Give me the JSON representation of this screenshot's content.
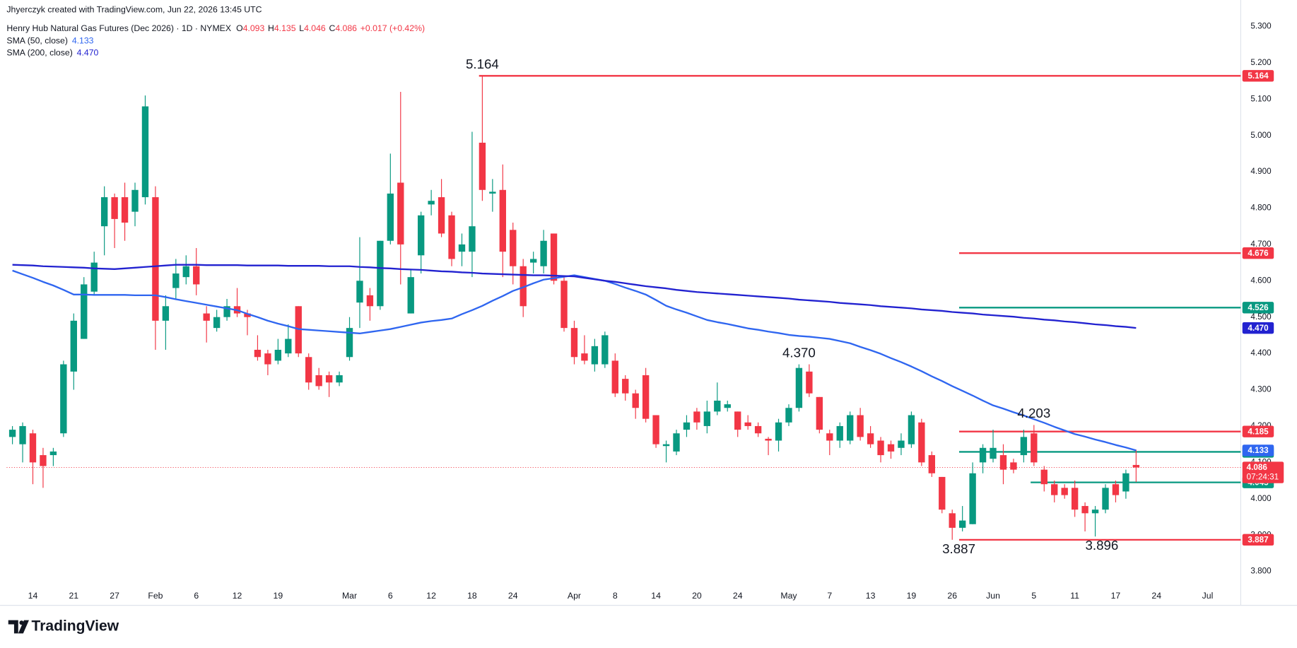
{
  "chart_data": {
    "type": "candlestick",
    "credit": "Jhyerczyk created with TradingView.com, Jun 22, 2026 13:45 UTC",
    "title": "Henry Hub Natural Gas Futures (Dec 2026) · 1D · NYMEX",
    "ohlc_legend": [
      {
        "key": "O",
        "value": 4.093
      },
      {
        "key": "H",
        "value": 4.135
      },
      {
        "key": "L",
        "value": 4.046
      },
      {
        "key": "C",
        "value": 4.086
      }
    ],
    "change": "+0.017 (+0.42%)",
    "brand": "TradingView",
    "up_color": "#089981",
    "down_color": "#f23645",
    "categories": [
      null,
      null,
      "14",
      null,
      null,
      null,
      "21",
      null,
      null,
      null,
      "27",
      null,
      null,
      null,
      "Feb",
      null,
      null,
      null,
      "6",
      null,
      null,
      null,
      "12",
      null,
      null,
      null,
      "19",
      null,
      null,
      null,
      null,
      null,
      null,
      "Mar",
      null,
      null,
      null,
      "6",
      null,
      null,
      null,
      "12",
      null,
      null,
      null,
      "18",
      null,
      null,
      null,
      "24",
      null,
      null,
      null,
      null,
      null,
      "Apr",
      null,
      null,
      null,
      "8",
      null,
      null,
      null,
      "14",
      null,
      null,
      null,
      "20",
      null,
      null,
      null,
      "24",
      null,
      null,
      null,
      null,
      "May",
      null,
      null,
      null,
      "7",
      null,
      null,
      null,
      "13",
      null,
      null,
      null,
      "19",
      null,
      null,
      null,
      "26",
      null,
      null,
      null,
      "Jun",
      null,
      null,
      null,
      "5",
      null,
      null,
      null,
      "11",
      null,
      null,
      null,
      "17",
      null,
      null,
      null,
      "24",
      null,
      null,
      null,
      null,
      "Jul",
      null,
      null
    ],
    "open": [
      4.17,
      4.15,
      4.18,
      4.12,
      4.12,
      4.18,
      4.35,
      4.44,
      4.57,
      4.75,
      4.83,
      4.83,
      4.79,
      4.83,
      4.83,
      4.49,
      4.58,
      4.61,
      4.64,
      4.51,
      4.47,
      4.5,
      4.53,
      4.51,
      4.41,
      4.4,
      4.38,
      4.4,
      4.53,
      4.39,
      4.34,
      4.34,
      4.32,
      4.39,
      4.54,
      4.56,
      4.53,
      4.71,
      4.87,
      4.51,
      4.67,
      4.81,
      4.83,
      4.78,
      4.68,
      4.68,
      4.98,
      4.84,
      4.85,
      4.74,
      4.64,
      4.65,
      4.64,
      4.73,
      4.6,
      4.47,
      4.4,
      4.37,
      4.37,
      4.38,
      4.33,
      4.29,
      4.34,
      4.23,
      4.145,
      4.13,
      4.19,
      4.24,
      4.2,
      4.24,
      4.25,
      4.24,
      4.21,
      4.2,
      4.165,
      4.16,
      4.21,
      4.25,
      4.35,
      4.28,
      4.18,
      4.16,
      4.16,
      4.23,
      4.18,
      4.16,
      4.15,
      4.14,
      4.15,
      4.21,
      4.12,
      4.06,
      3.96,
      3.92,
      3.93,
      4.1,
      4.11,
      4.12,
      4.1,
      4.12,
      4.18,
      4.08,
      4.04,
      4.03,
      4.03,
      3.98,
      3.96,
      3.97,
      4.04,
      4.02,
      4.093,
      null,
      null,
      null,
      null,
      null,
      null,
      null,
      null,
      null
    ],
    "high": [
      4.2,
      4.21,
      4.19,
      4.14,
      4.14,
      4.38,
      4.51,
      4.61,
      4.68,
      4.86,
      4.84,
      4.87,
      4.87,
      5.11,
      4.86,
      4.56,
      4.66,
      4.67,
      4.69,
      4.53,
      4.52,
      4.55,
      4.58,
      4.52,
      4.45,
      4.41,
      4.44,
      4.48,
      4.53,
      4.4,
      4.36,
      4.35,
      4.35,
      4.5,
      4.72,
      4.58,
      4.71,
      4.95,
      5.12,
      4.63,
      4.79,
      4.85,
      4.88,
      4.79,
      4.73,
      5.01,
      5.164,
      4.88,
      4.92,
      4.76,
      4.66,
      4.68,
      4.74,
      4.73,
      4.61,
      4.49,
      4.45,
      4.44,
      4.46,
      4.4,
      4.34,
      4.3,
      4.36,
      4.23,
      4.16,
      4.19,
      4.23,
      4.25,
      4.27,
      4.32,
      4.27,
      4.24,
      4.23,
      4.21,
      4.17,
      4.22,
      4.26,
      4.37,
      4.37,
      4.28,
      4.19,
      4.21,
      4.24,
      4.25,
      4.2,
      4.17,
      4.16,
      4.18,
      4.24,
      4.22,
      4.13,
      4.06,
      3.97,
      3.98,
      4.1,
      4.15,
      4.19,
      4.15,
      4.11,
      4.19,
      4.203,
      4.09,
      4.05,
      4.04,
      4.05,
      3.99,
      3.98,
      4.04,
      4.05,
      4.08,
      4.135,
      null,
      null,
      null,
      null,
      null,
      null,
      null,
      null,
      null
    ],
    "low": [
      4.15,
      4.1,
      4.04,
      4.03,
      4.09,
      4.17,
      4.3,
      4.44,
      4.56,
      4.67,
      4.69,
      4.71,
      4.75,
      4.81,
      4.41,
      4.41,
      4.55,
      4.59,
      4.56,
      4.43,
      4.46,
      4.49,
      4.5,
      4.45,
      4.38,
      4.34,
      4.37,
      4.39,
      4.39,
      4.3,
      4.3,
      4.28,
      4.31,
      4.38,
      4.47,
      4.49,
      4.52,
      4.7,
      4.59,
      4.51,
      4.62,
      4.78,
      4.72,
      4.64,
      4.64,
      4.61,
      4.82,
      4.79,
      4.61,
      4.59,
      4.5,
      4.62,
      4.62,
      4.59,
      4.46,
      4.37,
      4.37,
      4.35,
      4.36,
      4.28,
      4.27,
      4.22,
      4.21,
      4.14,
      4.1,
      4.12,
      4.17,
      4.19,
      4.18,
      4.23,
      4.24,
      4.17,
      4.19,
      4.17,
      4.12,
      4.13,
      4.2,
      4.24,
      4.28,
      4.18,
      4.12,
      4.14,
      4.15,
      4.16,
      4.14,
      4.1,
      4.11,
      4.12,
      4.14,
      4.09,
      4.06,
      3.96,
      3.887,
      3.91,
      3.93,
      4.07,
      4.1,
      4.04,
      4.07,
      4.1,
      4.09,
      4.02,
      3.99,
      4.0,
      3.95,
      3.91,
      3.896,
      3.96,
      3.99,
      4.0,
      4.046,
      null,
      null,
      null,
      null,
      null,
      null,
      null,
      null,
      null
    ],
    "close": [
      4.19,
      4.2,
      4.1,
      4.09,
      4.13,
      4.37,
      4.49,
      4.59,
      4.65,
      4.83,
      4.77,
      4.76,
      4.85,
      5.08,
      4.49,
      4.53,
      4.62,
      4.64,
      4.59,
      4.49,
      4.5,
      4.53,
      4.51,
      4.5,
      4.39,
      4.37,
      4.41,
      4.44,
      4.4,
      4.32,
      4.31,
      4.32,
      4.34,
      4.47,
      4.6,
      4.53,
      4.71,
      4.84,
      4.7,
      4.61,
      4.78,
      4.82,
      4.73,
      4.66,
      4.7,
      4.75,
      4.85,
      4.845,
      4.68,
      4.64,
      4.53,
      4.66,
      4.71,
      4.6,
      4.47,
      4.39,
      4.38,
      4.42,
      4.45,
      4.29,
      4.29,
      4.25,
      4.22,
      4.15,
      4.15,
      4.18,
      4.21,
      4.21,
      4.24,
      4.27,
      4.26,
      4.19,
      4.2,
      4.18,
      4.16,
      4.21,
      4.25,
      4.36,
      4.29,
      4.19,
      4.16,
      4.2,
      4.23,
      4.17,
      4.15,
      4.12,
      4.13,
      4.16,
      4.23,
      4.1,
      4.07,
      3.97,
      3.92,
      3.94,
      4.07,
      4.14,
      4.14,
      4.08,
      4.08,
      4.17,
      4.1,
      4.04,
      4.01,
      4.01,
      3.97,
      3.96,
      3.97,
      4.03,
      4.01,
      4.07,
      4.086,
      null,
      null,
      null,
      null,
      null,
      null,
      null,
      null,
      null
    ],
    "series": [
      {
        "name": "SMA (50, close)",
        "color": "#2f66f0",
        "last": 4.133,
        "values": [
          4.628,
          4.618,
          4.608,
          4.597,
          4.587,
          4.575,
          4.562,
          4.562,
          4.561,
          4.561,
          4.561,
          4.561,
          4.56,
          4.56,
          4.56,
          4.555,
          4.549,
          4.544,
          4.539,
          4.534,
          4.529,
          4.524,
          4.519,
          4.509,
          4.5,
          4.49,
          4.482,
          4.475,
          4.467,
          4.465,
          4.463,
          4.461,
          4.459,
          4.457,
          4.455,
          4.459,
          4.463,
          4.467,
          4.473,
          4.479,
          4.485,
          4.489,
          4.492,
          4.496,
          4.508,
          4.519,
          4.531,
          4.545,
          4.558,
          4.572,
          4.582,
          4.593,
          4.603,
          4.607,
          4.611,
          4.615,
          4.61,
          4.605,
          4.6,
          4.591,
          4.581,
          4.572,
          4.562,
          4.547,
          4.531,
          4.521,
          4.512,
          4.502,
          4.492,
          4.486,
          4.481,
          4.475,
          4.469,
          4.465,
          4.46,
          4.456,
          4.451,
          4.448,
          4.446,
          4.443,
          4.44,
          4.434,
          4.428,
          4.418,
          4.409,
          4.399,
          4.387,
          4.376,
          4.364,
          4.351,
          4.337,
          4.324,
          4.31,
          4.297,
          4.284,
          4.27,
          4.257,
          4.248,
          4.238,
          4.229,
          4.219,
          4.209,
          4.198,
          4.188,
          4.178,
          4.171,
          4.163,
          4.156,
          4.148,
          4.141,
          4.133,
          null,
          null,
          null,
          null,
          null,
          null,
          null,
          null,
          null
        ]
      },
      {
        "name": "SMA (200, close)",
        "color": "#2222d0",
        "last": {
          "value": 4.47,
          "label": "4.470"
        },
        "values": [
          4.644,
          4.643,
          4.642,
          4.64,
          4.639,
          4.638,
          4.637,
          4.636,
          4.634,
          4.633,
          4.632,
          4.634,
          4.636,
          4.638,
          4.64,
          4.642,
          4.644,
          4.644,
          4.644,
          4.643,
          4.643,
          4.643,
          4.643,
          4.642,
          4.642,
          4.642,
          4.642,
          4.641,
          4.641,
          4.641,
          4.641,
          4.64,
          4.64,
          4.64,
          4.638,
          4.637,
          4.635,
          4.634,
          4.632,
          4.631,
          4.63,
          4.628,
          4.626,
          4.625,
          4.623,
          4.622,
          4.62,
          4.619,
          4.618,
          4.617,
          4.616,
          4.615,
          4.615,
          4.614,
          4.613,
          4.612,
          4.608,
          4.604,
          4.6,
          4.597,
          4.593,
          4.589,
          4.585,
          4.582,
          4.579,
          4.575,
          4.572,
          4.569,
          4.567,
          4.565,
          4.563,
          4.561,
          4.559,
          4.557,
          4.555,
          4.553,
          4.551,
          4.548,
          4.546,
          4.544,
          4.542,
          4.539,
          4.537,
          4.535,
          4.533,
          4.53,
          4.528,
          4.526,
          4.524,
          4.521,
          4.519,
          4.517,
          4.514,
          4.512,
          4.51,
          4.507,
          4.505,
          4.503,
          4.501,
          4.498,
          4.496,
          4.493,
          4.491,
          4.488,
          4.486,
          4.483,
          4.48,
          4.478,
          4.475,
          4.473,
          4.47,
          null,
          null,
          null,
          null,
          null,
          null,
          null,
          null,
          null
        ]
      }
    ],
    "levels": [
      {
        "value": 5.164,
        "color": "#f23645"
      },
      {
        "value": 4.676,
        "color": "#f23645"
      },
      {
        "value": 4.526,
        "color": "#089981"
      },
      {
        "value": 4.185,
        "color": "#f23645"
      },
      {
        "value": 4.129,
        "color": "#089981"
      },
      {
        "value": 4.045,
        "color": "#089981"
      },
      {
        "value": 3.887,
        "color": "#f23645"
      }
    ],
    "last_price": 4.086,
    "countdown": "07:24:31",
    "annotations": [
      5.164,
      {
        "value": 4.37,
        "label": "4.370"
      },
      4.203,
      3.887,
      3.896
    ],
    "ylim": [
      3.71,
      5.33
    ],
    "yticks": [
      {
        "value": 3.8,
        "label": "3.800"
      },
      {
        "value": 3.9,
        "label": "3.900"
      },
      {
        "value": 4.0,
        "label": "4.000"
      },
      {
        "value": 4.1,
        "label": "4.100"
      },
      {
        "value": 4.2,
        "label": "4.200"
      },
      {
        "value": 4.3,
        "label": "4.300"
      },
      {
        "value": 4.4,
        "label": "4.400"
      },
      {
        "value": 4.5,
        "label": "4.500"
      },
      {
        "value": 4.6,
        "label": "4.600"
      },
      {
        "value": 4.7,
        "label": "4.700"
      },
      {
        "value": 4.8,
        "label": "4.800"
      },
      {
        "value": 4.9,
        "label": "4.900"
      },
      {
        "value": 5.0,
        "label": "5.000"
      },
      {
        "value": 5.1,
        "label": "5.100"
      },
      {
        "value": 5.2,
        "label": "5.200"
      },
      {
        "value": 5.3,
        "label": "5.300"
      }
    ],
    "grid": false
  }
}
